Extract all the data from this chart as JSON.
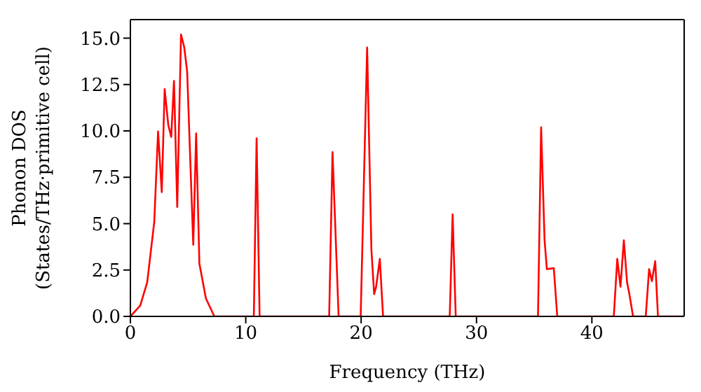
{
  "chart_data": {
    "type": "line",
    "xlabel": "Frequency (THz)",
    "ylabel": "Phonon DOS\n(States/THz·primitive cell)",
    "xlim": [
      0,
      48
    ],
    "ylim": [
      0,
      16
    ],
    "xticks": [
      0,
      10,
      20,
      30,
      40
    ],
    "yticks": [
      {
        "value": 0,
        "label": "0.0"
      },
      {
        "value": 2.5,
        "label": "2.5"
      },
      {
        "value": 5,
        "label": "5.0"
      },
      {
        "value": 7.5,
        "label": "7.5"
      },
      {
        "value": 10,
        "label": "10.0"
      },
      {
        "value": 12.5,
        "label": "12.5"
      },
      {
        "value": 15,
        "label": "15.0"
      }
    ],
    "line_style": "solid",
    "series": [
      {
        "color": "#ff0000",
        "x": [
          0,
          0.85,
          1.46,
          2.07,
          2.4,
          2.72,
          2.97,
          3.29,
          3.54,
          3.78,
          4.06,
          4.39,
          4.67,
          4.92,
          5.45,
          5.7,
          5.98,
          6.55,
          7.28,
          10.7,
          10.94,
          11.2,
          17.23,
          17.52,
          18.05,
          19.96,
          20.52,
          20.89,
          21.13,
          21.3,
          21.62,
          21.9,
          27.68,
          27.93,
          28.2,
          35.33,
          35.6,
          35.9,
          36.1,
          36.7,
          37,
          41.9,
          42.2,
          42.48,
          42.77,
          43.05,
          43.25,
          43.57,
          44.67,
          44.96,
          45.2,
          45.49,
          45.73,
          48
        ],
        "values": [
          0,
          0.58,
          1.84,
          5.1,
          9.97,
          6.7,
          12.25,
          10.3,
          9.67,
          12.7,
          5.9,
          15.2,
          14.5,
          13.2,
          3.86,
          9.87,
          2.85,
          0.96,
          0,
          0,
          9.6,
          0,
          0,
          8.86,
          0,
          0,
          14.5,
          3.6,
          1.2,
          1.6,
          3.1,
          0,
          0,
          5.5,
          0,
          0,
          10.2,
          4.1,
          2.55,
          2.6,
          0,
          0,
          3.1,
          1.6,
          4.1,
          1.84,
          1.2,
          0,
          0,
          2.55,
          1.9,
          2.98,
          0,
          0
        ]
      }
    ]
  }
}
